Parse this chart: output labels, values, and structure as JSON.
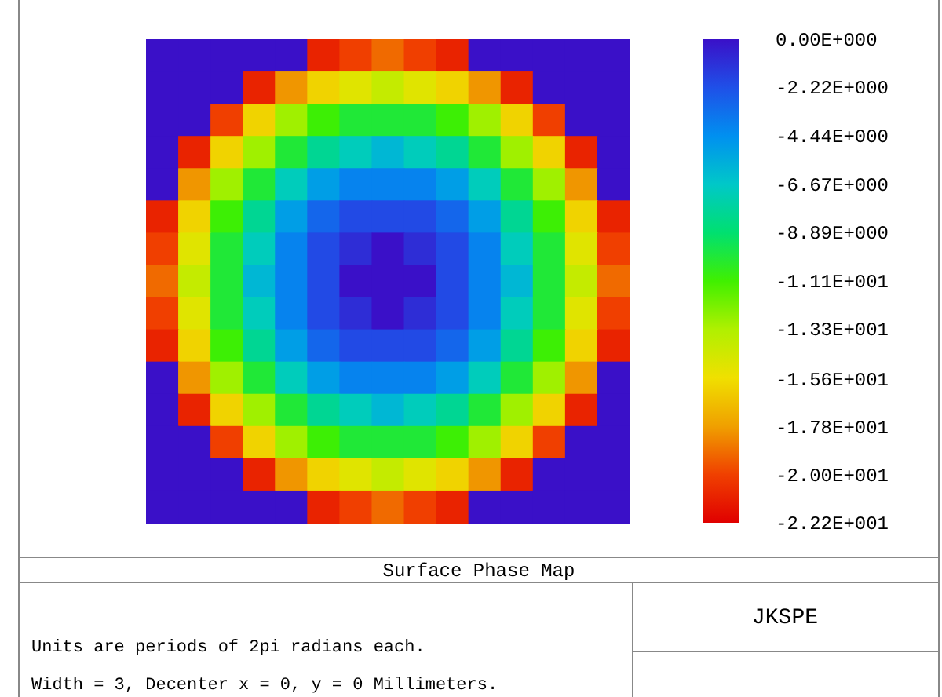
{
  "chart_data": {
    "type": "heatmap",
    "title": "Surface Phase Map",
    "annotations": [
      "JKSPE",
      "Units are periods of 2pi radians each.",
      "Width = 3, Decenter x = 0, y = 0 Millimeters."
    ],
    "categories": [
      null,
      null,
      null,
      null,
      null,
      null,
      null,
      null,
      null,
      null,
      null,
      null,
      null,
      null,
      null
    ],
    "y_categories": [
      null,
      null,
      null,
      null,
      null,
      null,
      null,
      null,
      null,
      null,
      null,
      null,
      null,
      null,
      null
    ],
    "cells": [
      [
        0,
        0,
        0,
        0,
        0,
        -21,
        -20,
        -19,
        -20,
        -21,
        0,
        0,
        0,
        0,
        0
      ],
      [
        0,
        0,
        0,
        -21,
        -18,
        -16,
        -15,
        -14,
        -15,
        -16,
        -18,
        -21,
        0,
        0,
        0
      ],
      [
        0,
        0,
        -20,
        -16,
        -13,
        -11,
        -10,
        -10,
        -10,
        -11,
        -13,
        -16,
        -20,
        0,
        0
      ],
      [
        0,
        -21,
        -16,
        -13,
        -10,
        -8,
        -7,
        -6,
        -7,
        -8,
        -10,
        -13,
        -16,
        -21,
        0
      ],
      [
        0,
        -18,
        -13,
        -10,
        -7,
        -5,
        -4,
        -4,
        -4,
        -5,
        -7,
        -10,
        -13,
        -18,
        0
      ],
      [
        -21,
        -16,
        -11,
        -8,
        -5,
        -3,
        -2,
        -2,
        -2,
        -3,
        -5,
        -8,
        -11,
        -16,
        -21
      ],
      [
        -20,
        -15,
        -10,
        -7,
        -4,
        -2,
        -1,
        0,
        -1,
        -2,
        -4,
        -7,
        -10,
        -15,
        -20
      ],
      [
        -19,
        -14,
        -10,
        -6,
        -4,
        -2,
        0,
        0,
        0,
        -2,
        -4,
        -6,
        -10,
        -14,
        -19
      ],
      [
        -20,
        -15,
        -10,
        -7,
        -4,
        -2,
        -1,
        0,
        -1,
        -2,
        -4,
        -7,
        -10,
        -15,
        -20
      ],
      [
        -21,
        -16,
        -11,
        -8,
        -5,
        -3,
        -2,
        -2,
        -2,
        -3,
        -5,
        -8,
        -11,
        -16,
        -21
      ],
      [
        0,
        -18,
        -13,
        -10,
        -7,
        -5,
        -4,
        -4,
        -4,
        -5,
        -7,
        -10,
        -13,
        -18,
        0
      ],
      [
        0,
        -21,
        -16,
        -13,
        -10,
        -8,
        -7,
        -6,
        -7,
        -8,
        -10,
        -13,
        -16,
        -21,
        0
      ],
      [
        0,
        0,
        -20,
        -16,
        -13,
        -11,
        -10,
        -10,
        -10,
        -11,
        -13,
        -16,
        -20,
        0,
        0
      ],
      [
        0,
        0,
        0,
        -21,
        -18,
        -16,
        -15,
        -14,
        -15,
        -16,
        -18,
        -21,
        0,
        0,
        0
      ],
      [
        0,
        0,
        0,
        0,
        0,
        -21,
        -20,
        -19,
        -20,
        -21,
        0,
        0,
        0,
        0,
        0
      ]
    ],
    "clim": [
      -22.2,
      0
    ],
    "cticks": [
      {
        "value": 0,
        "label": "0.00E+000"
      },
      {
        "value": -2.22,
        "label": "-2.22E+000"
      },
      {
        "value": -4.44,
        "label": "-4.44E+000"
      },
      {
        "value": -6.67,
        "label": "-6.67E+000"
      },
      {
        "value": -8.89,
        "label": "-8.89E+000"
      },
      {
        "value": -11.1,
        "label": "-1.11E+001"
      },
      {
        "value": -13.3,
        "label": "-1.33E+001"
      },
      {
        "value": -15.6,
        "label": "-1.56E+001"
      },
      {
        "value": -17.8,
        "label": "-1.78E+001"
      },
      {
        "value": -20,
        "label": "-2.00E+001"
      },
      {
        "value": -22.2,
        "label": "-2.22E+001"
      }
    ],
    "tick_labels": false
  }
}
